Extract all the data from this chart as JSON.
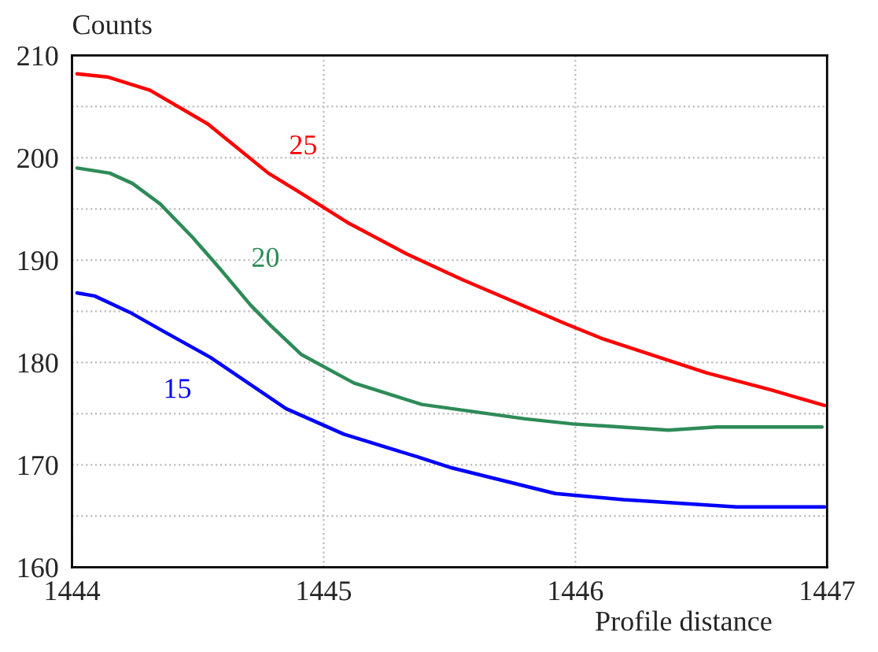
{
  "chart_data": {
    "type": "line",
    "xlabel": "Profile distance",
    "ylabel": "Counts",
    "xlim": [
      1444,
      1447
    ],
    "ylim": [
      160,
      210
    ],
    "xticks": [
      1444,
      1445,
      1446,
      1447
    ],
    "yticks": [
      160,
      {
        "value": 165,
        "label": null
      },
      170,
      {
        "value": 175,
        "label": null
      },
      180,
      {
        "value": 185,
        "label": null
      },
      190,
      {
        "value": 195,
        "label": null
      },
      200,
      {
        "value": 205,
        "label": null
      },
      210
    ],
    "grid": true,
    "legend": false,
    "marker": "none",
    "line_style": "solid",
    "series": [
      {
        "name": "25",
        "color": "#ff0000",
        "x": [
          1444.02,
          1444.14,
          1444.31,
          1444.54,
          1444.78,
          1444.9,
          1445.1,
          1445.33,
          1445.55,
          1445.96,
          1446.11,
          1446.52,
          1446.78,
          1446.99
        ],
        "values": [
          208.2,
          207.9,
          206.6,
          203.3,
          198.5,
          196.7,
          193.6,
          190.6,
          188.1,
          183.8,
          182.3,
          179.0,
          177.3,
          175.8
        ]
      },
      {
        "name": "20",
        "color": "#2e8b57",
        "x": [
          1444.02,
          1444.15,
          1444.24,
          1444.35,
          1444.48,
          1444.59,
          1444.71,
          1444.79,
          1444.91,
          1445.12,
          1445.39,
          1445.8,
          1445.99,
          1446.37,
          1446.56,
          1446.78,
          1446.98
        ],
        "values": [
          199.0,
          198.5,
          197.5,
          195.5,
          192.2,
          189.1,
          185.6,
          183.6,
          180.8,
          178.0,
          175.9,
          174.5,
          174.0,
          173.4,
          173.7,
          173.7,
          173.7
        ]
      },
      {
        "name": "15",
        "color": "#0000ff",
        "x": [
          1444.02,
          1444.09,
          1444.23,
          1444.36,
          1444.55,
          1444.85,
          1445.08,
          1445.37,
          1445.51,
          1445.92,
          1446.19,
          1446.64,
          1446.99
        ],
        "values": [
          186.8,
          186.5,
          184.9,
          183.1,
          180.5,
          175.5,
          173.0,
          170.8,
          169.7,
          167.2,
          166.6,
          165.9,
          165.9
        ]
      }
    ]
  }
}
